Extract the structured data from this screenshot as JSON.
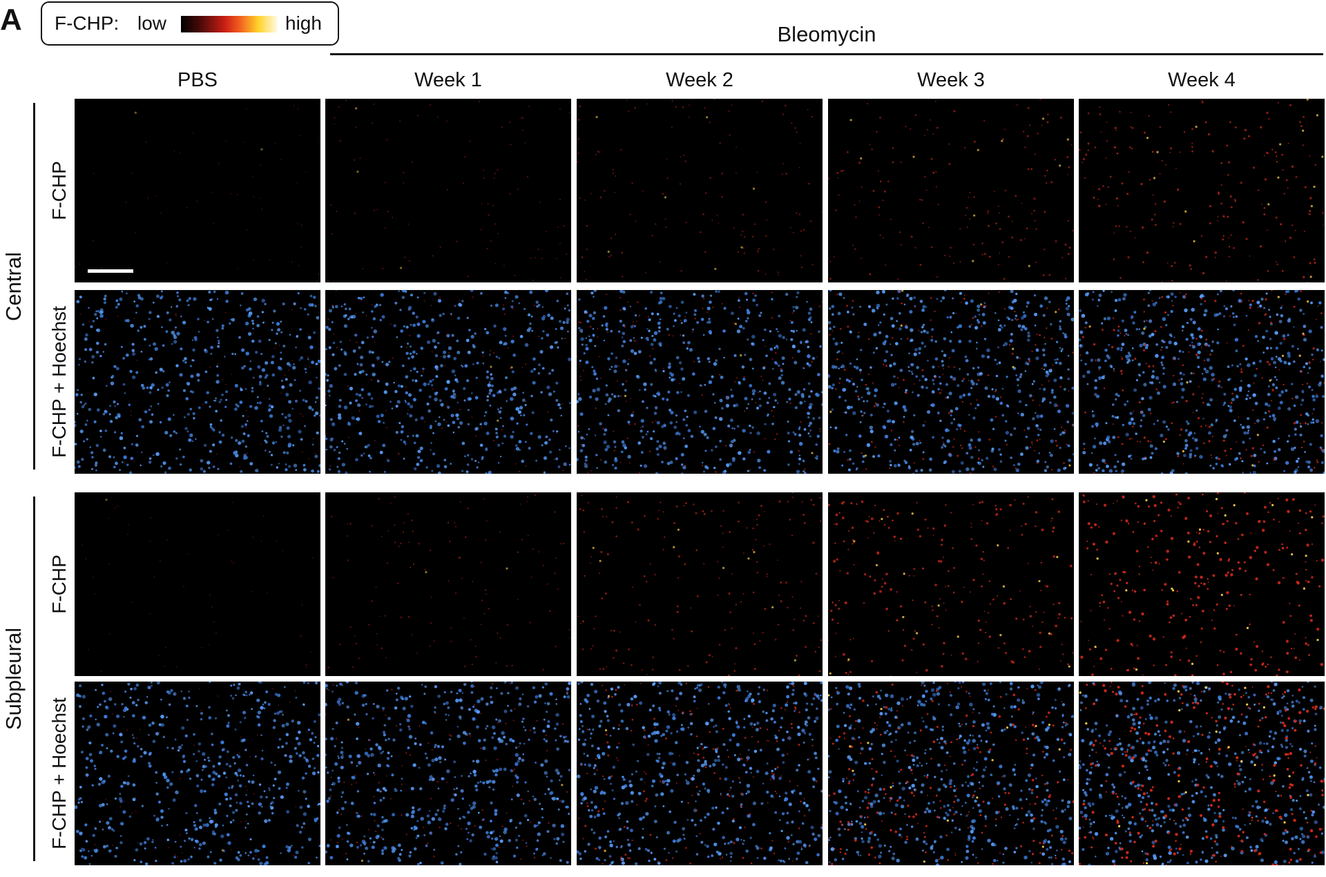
{
  "panel_label": "A",
  "legend": {
    "label": "F-CHP:",
    "low": "low",
    "high": "high"
  },
  "group_header": "Bleomycin",
  "columns": [
    "PBS",
    "Week 1",
    "Week 2",
    "Week 3",
    "Week 4"
  ],
  "row_groups": [
    {
      "label": "Central",
      "rows": [
        "F-CHP",
        "F-CHP + Hoechst"
      ]
    },
    {
      "label": "Subpleural",
      "rows": [
        "F-CHP",
        "F-CHP + Hoechst"
      ]
    }
  ]
}
